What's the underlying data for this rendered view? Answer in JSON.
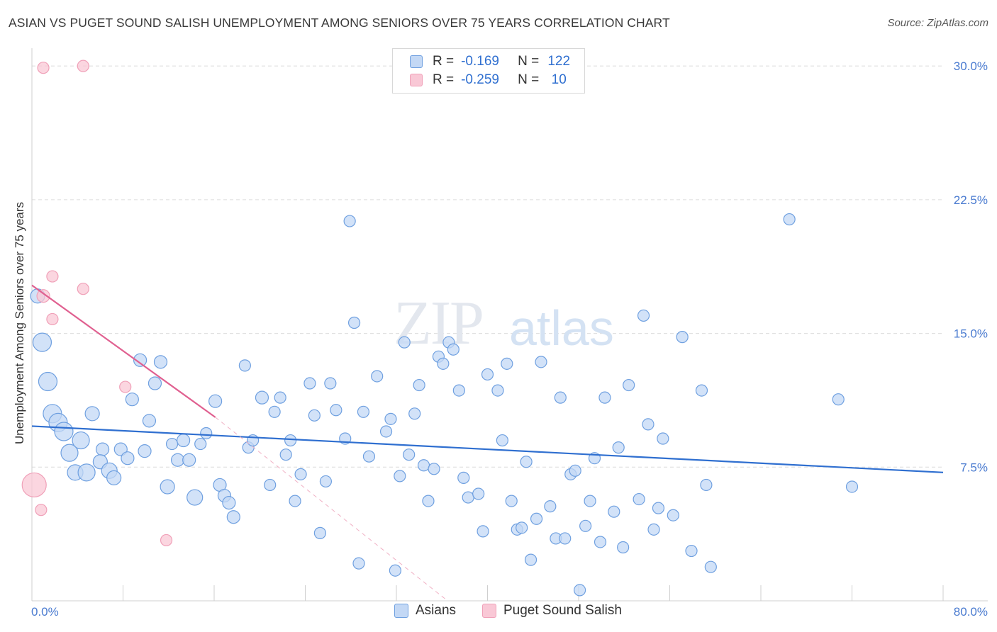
{
  "title": "ASIAN VS PUGET SOUND SALISH UNEMPLOYMENT AMONG SENIORS OVER 75 YEARS CORRELATION CHART",
  "source": "Source: ZipAtlas.com",
  "watermark": {
    "zip": "ZIP",
    "atlas": "atlas"
  },
  "legend": {
    "rows": [
      {
        "r_label": "R =",
        "r_value": "-0.169",
        "n_label": "N =",
        "n_value": "122",
        "color": "#6fa0e0"
      },
      {
        "r_label": "R =",
        "r_value": "-0.259",
        "n_label": "N =",
        "n_value": "10",
        "color": "#f0a0b8"
      }
    ]
  },
  "bottom_legend": [
    "Asians",
    "Puget Sound Salish"
  ],
  "chart_data": {
    "type": "scatter",
    "title": "ASIAN VS PUGET SOUND SALISH UNEMPLOYMENT AMONG SENIORS OVER 75 YEARS CORRELATION CHART",
    "xlabel": "",
    "ylabel": "Unemployment Among Seniors over 75 years",
    "xlim": [
      0,
      80
    ],
    "ylim": [
      0,
      31
    ],
    "x_tick_labels": [
      "0.0%",
      "80.0%"
    ],
    "y_ticks": [
      7.5,
      15.0,
      22.5,
      30.0
    ],
    "y_tick_labels": [
      "7.5%",
      "15.0%",
      "22.5%",
      "30.0%"
    ],
    "grid": true,
    "legend_position": "top-center",
    "series": [
      {
        "name": "Asians",
        "color": "#6fa0e0",
        "fill": "#c3d8f5",
        "trend": {
          "x": [
            0,
            80
          ],
          "y": [
            9.8,
            7.2
          ],
          "color": "#2f6fd0"
        },
        "points": [
          [
            0.5,
            17.1,
            10
          ],
          [
            0.9,
            14.5,
            13
          ],
          [
            1.4,
            12.3,
            13
          ],
          [
            1.8,
            10.5,
            13
          ],
          [
            2.3,
            10.0,
            13
          ],
          [
            2.8,
            9.5,
            13
          ],
          [
            3.3,
            8.3,
            12
          ],
          [
            3.8,
            7.2,
            11
          ],
          [
            4.3,
            9.0,
            12
          ],
          [
            4.8,
            7.2,
            12
          ],
          [
            5.3,
            10.5,
            10
          ],
          [
            6.2,
            8.5,
            9
          ],
          [
            6.0,
            7.8,
            10
          ],
          [
            6.8,
            7.3,
            11
          ],
          [
            7.2,
            6.9,
            10
          ],
          [
            7.8,
            8.5,
            9
          ],
          [
            8.4,
            8.0,
            9
          ],
          [
            8.8,
            11.3,
            9
          ],
          [
            9.5,
            13.5,
            9
          ],
          [
            9.9,
            8.4,
            9
          ],
          [
            10.3,
            10.1,
            9
          ],
          [
            10.8,
            12.2,
            9
          ],
          [
            11.3,
            13.4,
            9
          ],
          [
            11.9,
            6.4,
            10
          ],
          [
            12.3,
            8.8,
            8
          ],
          [
            12.8,
            7.9,
            9
          ],
          [
            13.3,
            9.0,
            9
          ],
          [
            13.8,
            7.9,
            9
          ],
          [
            14.3,
            5.8,
            11
          ],
          [
            14.8,
            8.8,
            8
          ],
          [
            15.3,
            9.4,
            8
          ],
          [
            16.1,
            11.2,
            9
          ],
          [
            16.5,
            6.5,
            9
          ],
          [
            16.9,
            5.9,
            9
          ],
          [
            17.3,
            5.5,
            9
          ],
          [
            17.7,
            4.7,
            9
          ],
          [
            18.7,
            13.2,
            8
          ],
          [
            19.0,
            8.6,
            8
          ],
          [
            19.4,
            9.0,
            8
          ],
          [
            20.2,
            11.4,
            9
          ],
          [
            20.9,
            6.5,
            8
          ],
          [
            21.3,
            10.6,
            8
          ],
          [
            21.8,
            11.4,
            8
          ],
          [
            22.3,
            8.2,
            8
          ],
          [
            22.7,
            9.0,
            8
          ],
          [
            23.1,
            5.6,
            8
          ],
          [
            23.6,
            7.1,
            8
          ],
          [
            24.4,
            12.2,
            8
          ],
          [
            24.8,
            10.4,
            8
          ],
          [
            25.3,
            3.8,
            8
          ],
          [
            25.8,
            6.7,
            8
          ],
          [
            26.2,
            12.2,
            8
          ],
          [
            26.7,
            10.7,
            8
          ],
          [
            27.5,
            9.1,
            8
          ],
          [
            27.9,
            21.3,
            8
          ],
          [
            28.3,
            15.6,
            8
          ],
          [
            28.7,
            2.1,
            8
          ],
          [
            29.1,
            10.6,
            8
          ],
          [
            29.6,
            8.1,
            8
          ],
          [
            30.3,
            12.6,
            8
          ],
          [
            31.1,
            9.5,
            8
          ],
          [
            31.5,
            10.2,
            8
          ],
          [
            31.9,
            1.7,
            8
          ],
          [
            32.3,
            7.0,
            8
          ],
          [
            32.7,
            14.5,
            8
          ],
          [
            33.1,
            8.2,
            8
          ],
          [
            33.6,
            10.5,
            8
          ],
          [
            34.0,
            12.1,
            8
          ],
          [
            34.4,
            7.6,
            8
          ],
          [
            34.8,
            5.6,
            8
          ],
          [
            35.3,
            7.4,
            8
          ],
          [
            35.7,
            13.7,
            8
          ],
          [
            36.1,
            13.3,
            8
          ],
          [
            36.6,
            14.5,
            8
          ],
          [
            37.0,
            14.1,
            8
          ],
          [
            37.5,
            11.8,
            8
          ],
          [
            37.9,
            6.9,
            8
          ],
          [
            38.3,
            5.8,
            8
          ],
          [
            39.2,
            6.0,
            8
          ],
          [
            39.6,
            3.9,
            8
          ],
          [
            40.0,
            12.7,
            8
          ],
          [
            40.9,
            11.8,
            8
          ],
          [
            41.3,
            9.0,
            8
          ],
          [
            41.7,
            13.3,
            8
          ],
          [
            42.1,
            5.6,
            8
          ],
          [
            42.6,
            4.0,
            8
          ],
          [
            43.0,
            4.1,
            8
          ],
          [
            43.4,
            7.8,
            8
          ],
          [
            43.8,
            2.3,
            8
          ],
          [
            44.3,
            4.6,
            8
          ],
          [
            44.7,
            13.4,
            8
          ],
          [
            45.5,
            5.3,
            8
          ],
          [
            46.0,
            3.5,
            8
          ],
          [
            46.4,
            11.4,
            8
          ],
          [
            46.8,
            3.5,
            8
          ],
          [
            47.3,
            7.1,
            8
          ],
          [
            47.7,
            7.3,
            8
          ],
          [
            48.1,
            0.6,
            8
          ],
          [
            48.6,
            4.2,
            8
          ],
          [
            49.0,
            5.6,
            8
          ],
          [
            49.4,
            8.0,
            8
          ],
          [
            49.9,
            3.3,
            8
          ],
          [
            50.3,
            11.4,
            8
          ],
          [
            51.1,
            5.0,
            8
          ],
          [
            51.5,
            8.6,
            8
          ],
          [
            51.9,
            3.0,
            8
          ],
          [
            52.4,
            12.1,
            8
          ],
          [
            53.3,
            5.7,
            8
          ],
          [
            53.7,
            16.0,
            8
          ],
          [
            54.1,
            9.9,
            8
          ],
          [
            54.6,
            4.0,
            8
          ],
          [
            55.0,
            5.2,
            8
          ],
          [
            55.4,
            9.1,
            8
          ],
          [
            56.3,
            4.8,
            8
          ],
          [
            57.1,
            14.8,
            8
          ],
          [
            57.9,
            2.8,
            8
          ],
          [
            58.8,
            11.8,
            8
          ],
          [
            59.2,
            6.5,
            8
          ],
          [
            59.6,
            1.9,
            8
          ],
          [
            66.5,
            21.4,
            8
          ],
          [
            70.8,
            11.3,
            8
          ],
          [
            72.0,
            6.4,
            8
          ]
        ]
      },
      {
        "name": "Puget Sound Salish",
        "color": "#f0a0b8",
        "fill": "#f9c8d6",
        "trend": {
          "x": [
            0,
            16.1
          ],
          "y": [
            17.7,
            10.3
          ],
          "color": "#e06090",
          "dashed_extension_to": [
            36.5,
            0
          ]
        },
        "points": [
          [
            1.0,
            29.9,
            8
          ],
          [
            4.5,
            30.0,
            8
          ],
          [
            1.0,
            17.1,
            9
          ],
          [
            1.8,
            18.2,
            8
          ],
          [
            1.8,
            15.8,
            8
          ],
          [
            4.5,
            17.5,
            8
          ],
          [
            8.2,
            12.0,
            8
          ],
          [
            0.2,
            6.5,
            17
          ],
          [
            0.8,
            5.1,
            8
          ],
          [
            11.8,
            3.4,
            8
          ]
        ]
      }
    ]
  }
}
